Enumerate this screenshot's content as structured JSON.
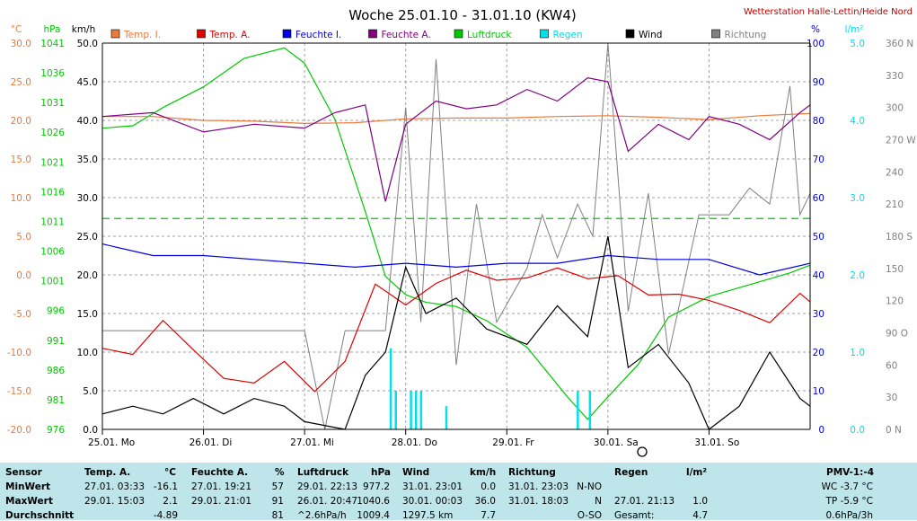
{
  "title": "Woche 25.01.10 - 31.01.10 (KW4)",
  "station": "Wetterstation Halle-Lettin/Heide Nord",
  "colors": {
    "temp_i": "#e87a3c",
    "temp_a": "#e00000",
    "feuchte_i": "#0000e0",
    "feuchte_a": "#800080",
    "luftdruck": "#00c800",
    "regen": "#00e0e8",
    "wind": "#000000",
    "richtung": "#808080",
    "stats_bg": "#bde5ea"
  },
  "legend": [
    {
      "label": "Temp. I.",
      "color": "#e87a3c"
    },
    {
      "label": "Temp. A.",
      "color": "#e00000"
    },
    {
      "label": "Feuchte I.",
      "color": "#0000e0"
    },
    {
      "label": "Feuchte A.",
      "color": "#800080"
    },
    {
      "label": "Luftdruck",
      "color": "#00c800"
    },
    {
      "label": "Regen",
      "color": "#00e0e8"
    },
    {
      "label": "Wind",
      "color": "#000000"
    },
    {
      "label": "Richtung",
      "color": "#808080"
    }
  ],
  "axes": {
    "temp": {
      "unit": "°C",
      "ticks": [
        "30.0",
        "25.0",
        "20.0",
        "15.0",
        "10.0",
        "5.0",
        "0.0",
        "-5.0",
        "-10.0",
        "-15.0",
        "-20.0"
      ],
      "color": "#e87a3c"
    },
    "pressure": {
      "unit": "hPa",
      "ticks": [
        "1041",
        "1036",
        "1031",
        "1026",
        "1021",
        "1016",
        "1011",
        "1006",
        "1001",
        "996",
        "991",
        "986",
        "981",
        "976"
      ],
      "color": "#00c800"
    },
    "wind": {
      "unit": "km/h",
      "ticks": [
        "50.0",
        "45.0",
        "40.0",
        "35.0",
        "30.0",
        "25.0",
        "20.0",
        "15.0",
        "10.0",
        "5.0",
        "0.0"
      ],
      "color": "#000000"
    },
    "humidity": {
      "unit": "%",
      "ticks": [
        "100",
        "90",
        "80",
        "70",
        "60",
        "50",
        "40",
        "30",
        "20",
        "10",
        "0"
      ],
      "color": "#0000e0"
    },
    "rain": {
      "unit": "l/m²",
      "ticks": [
        "5.0",
        "4.0",
        "3.0",
        "2.0",
        "1.0",
        "0.0"
      ],
      "color": "#00e0e8"
    },
    "direction": {
      "ticks": [
        "360 N",
        "330",
        "300",
        "270 W",
        "240",
        "210",
        "180 S",
        "150",
        "120",
        "90 O",
        "60",
        "30",
        "0 N"
      ],
      "color": "#808080"
    },
    "days": [
      "25.01. Mo",
      "26.01. Di",
      "27.01. Mi",
      "28.01. Do",
      "29.01. Fr",
      "30.01. Sa",
      "31.01. So"
    ]
  },
  "chart_data": {
    "type": "line",
    "title": "Woche 25.01.10 - 31.01.10 (KW4)",
    "x_unit": "days since 25.01. 00:00",
    "xlim": [
      0,
      7
    ],
    "series": [
      {
        "name": "Temp. I.",
        "axis": "temp",
        "x": [
          0,
          0.5,
          1,
          1.5,
          2,
          2.5,
          3,
          3.5,
          4,
          4.5,
          5,
          5.5,
          6,
          6.5,
          7
        ],
        "y": [
          20.5,
          20.5,
          20.0,
          19.9,
          19.6,
          19.7,
          20.2,
          20.3,
          20.3,
          20.5,
          20.6,
          20.4,
          20.1,
          20.6,
          20.9
        ]
      },
      {
        "name": "Temp. A.",
        "axis": "temp",
        "x": [
          0,
          0.3,
          0.6,
          0.9,
          1.2,
          1.5,
          1.8,
          2.1,
          2.4,
          2.7,
          3.0,
          3.3,
          3.6,
          3.9,
          4.2,
          4.5,
          4.8,
          5.1,
          5.4,
          5.7,
          6.0,
          6.3,
          6.6,
          6.9,
          7.0
        ],
        "y": [
          -9.5,
          -10.3,
          -5.9,
          -9.7,
          -13.4,
          -14.0,
          -11.2,
          -15.1,
          -11.2,
          -1.2,
          -3.9,
          -1.1,
          0.6,
          -0.7,
          -0.4,
          0.9,
          -0.5,
          -0.1,
          -2.6,
          -2.5,
          -3.3,
          -4.6,
          -6.2,
          -2.4,
          -3.5
        ]
      },
      {
        "name": "Feuchte I.",
        "axis": "humidity",
        "x": [
          0,
          0.5,
          1,
          1.5,
          2,
          2.5,
          3,
          3.5,
          4,
          4.5,
          5,
          5.5,
          6,
          6.5,
          7
        ],
        "y": [
          48,
          45,
          45,
          44,
          43,
          42,
          43,
          42,
          43,
          43,
          45,
          44,
          44,
          40,
          43
        ]
      },
      {
        "name": "Feuchte A.",
        "axis": "humidity",
        "x": [
          0,
          0.5,
          1,
          1.5,
          2,
          2.3,
          2.6,
          2.8,
          3.0,
          3.3,
          3.6,
          3.9,
          4.2,
          4.5,
          4.8,
          5.0,
          5.2,
          5.5,
          5.8,
          6.0,
          6.3,
          6.6,
          6.9,
          7.0
        ],
        "y": [
          81,
          82,
          77,
          79,
          78,
          82,
          84,
          59,
          79,
          85,
          83,
          84,
          88,
          85,
          91,
          90,
          72,
          79,
          75,
          81,
          79,
          75,
          82,
          84
        ]
      },
      {
        "name": "Luftdruck",
        "axis": "pressure",
        "x": [
          0,
          0.3,
          0.6,
          1.0,
          1.4,
          1.8,
          2.0,
          2.3,
          2.6,
          2.8,
          3.0,
          3.2,
          3.5,
          3.8,
          4.2,
          4.6,
          4.8,
          5.0,
          5.3,
          5.6,
          6.0,
          6.4,
          6.8,
          7.0
        ],
        "y": [
          1027.0,
          1027.4,
          1030.5,
          1034.0,
          1038.8,
          1040.6,
          1038.0,
          1028.5,
          1012.9,
          1001.9,
          998.8,
          997.5,
          996.8,
          994.4,
          989.9,
          981.5,
          977.7,
          981.5,
          987.0,
          995.0,
          998.5,
          1000.5,
          1002.5,
          1003.8
        ]
      },
      {
        "name": "Regen",
        "axis": "rain",
        "x": [
          2.85,
          2.9,
          3.05,
          3.1,
          3.15,
          3.4,
          4.7,
          4.82
        ],
        "y": [
          1.05,
          0.5,
          0.5,
          0.5,
          0.5,
          0.3,
          0.5,
          0.5
        ]
      },
      {
        "name": "Wind",
        "axis": "wind",
        "x": [
          0,
          0.3,
          0.6,
          0.9,
          1.2,
          1.5,
          1.8,
          2.0,
          2.4,
          2.6,
          2.8,
          3.0,
          3.2,
          3.5,
          3.8,
          4.2,
          4.5,
          4.8,
          5.0,
          5.2,
          5.5,
          5.8,
          6.0,
          6.3,
          6.6,
          6.9,
          7.0
        ],
        "y": [
          2,
          3,
          2,
          4,
          2,
          4,
          3,
          1,
          0,
          7,
          10,
          21,
          15,
          17,
          13,
          11,
          16,
          12,
          25,
          8,
          11,
          6,
          0,
          3,
          10,
          4,
          3
        ]
      },
      {
        "name": "Richtung",
        "axis": "direction",
        "x": [
          0,
          2.0,
          2.2,
          2.4,
          2.8,
          3.0,
          3.15,
          3.3,
          3.5,
          3.7,
          3.9,
          4.2,
          4.35,
          4.5,
          4.7,
          4.85,
          5.0,
          5.2,
          5.4,
          5.6,
          5.9,
          6.2,
          6.4,
          6.6,
          6.8,
          6.9,
          7.0
        ],
        "y": [
          92,
          92,
          0,
          92,
          92,
          300,
          100,
          345,
          60,
          210,
          100,
          150,
          200,
          160,
          210,
          180,
          360,
          110,
          220,
          70,
          200,
          200,
          225,
          210,
          320,
          200,
          220
        ]
      }
    ],
    "reference_line": {
      "axis": "temp",
      "y": 7.3,
      "style": "dashed",
      "color": "#00c800"
    },
    "grid": true
  },
  "stats": {
    "columns": [
      {
        "head": "Sensor",
        "unit": ""
      },
      {
        "head": "Temp. A.",
        "unit": "°C"
      },
      {
        "head": "Feuchte A.",
        "unit": "%"
      },
      {
        "head": "Luftdruck",
        "unit": "hPa"
      },
      {
        "head": "Wind",
        "unit": "km/h"
      },
      {
        "head": "Richtung",
        "unit": ""
      },
      {
        "head": "Regen",
        "unit": "l/m²"
      }
    ],
    "rows": [
      {
        "label": "MinWert",
        "temp_time": "27.01. 03:33",
        "temp_val": "-16.1",
        "hum_time": "27.01. 19:21",
        "hum_val": "57",
        "press_time": "29.01. 22:13",
        "press_val": "977.2",
        "wind_time": "31.01. 23:01",
        "wind_val": "0.0",
        "dir_time": "31.01. 23:03",
        "dir_val": "N-NO",
        "rain_time": "",
        "rain_val": "",
        "pmv": "WC -3.7 °C"
      },
      {
        "label": "MaxWert",
        "temp_time": "29.01. 15:03",
        "temp_val": "2.1",
        "hum_time": "29.01. 21:01",
        "hum_val": "91",
        "press_time": "26.01. 20:47",
        "press_val": "1040.6",
        "wind_time": "30.01. 00:03",
        "wind_val": "36.0",
        "dir_time": "31.01. 18:03",
        "dir_val": "N",
        "rain_time": "27.01. 21:13",
        "rain_val": "1.0",
        "pmv": "TP -5.9 °C"
      },
      {
        "label": "Durchschnitt",
        "temp_time": "",
        "temp_val": "-4.89",
        "hum_time": "",
        "hum_val": "81",
        "press_time": "^2.6hPa/h",
        "press_val": "1009.4",
        "wind_time": "1297.5 km",
        "wind_val": "7.7",
        "dir_time": "",
        "dir_val": "O-SO",
        "rain_time": "Gesamt:",
        "rain_val": "4.7",
        "pmv": "0.6hPa/3h"
      }
    ],
    "pmv_title": "PMV-1:-4"
  }
}
